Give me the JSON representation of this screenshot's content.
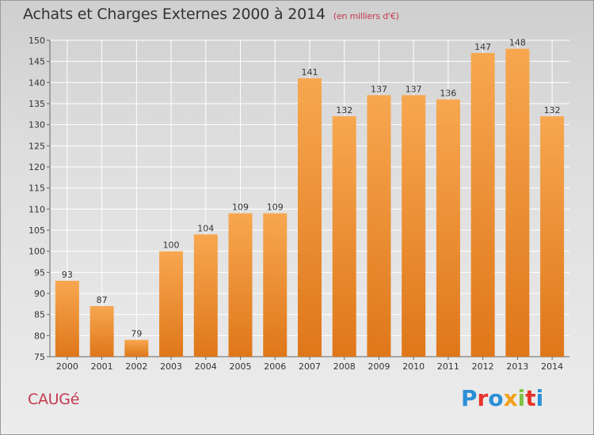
{
  "header": {
    "title": "Achats et Charges Externes 2000 à 2014",
    "unit": "(en milliers d'€)"
  },
  "footer": {
    "place": "CAUGé",
    "logo_text": "Proxiti",
    "logo_colors": [
      "#2a8fd6",
      "#e8332a",
      "#2a8fd6",
      "#f2a01a",
      "#7cc243",
      "#e8332a",
      "#2a8fd6"
    ]
  },
  "colors": {
    "bar_light": "#f6a24c",
    "bar_dark": "#e07a1e",
    "grid": "#ffffff",
    "axis": "#666666",
    "accent": "#c23a4e"
  },
  "chart_data": {
    "type": "bar",
    "title": "Achats et Charges Externes 2000 à 2014",
    "subtitle": "(en milliers d'€)",
    "xlabel": "",
    "ylabel": "",
    "categories": [
      "2000",
      "2001",
      "2002",
      "2003",
      "2004",
      "2005",
      "2006",
      "2007",
      "2008",
      "2009",
      "2010",
      "2011",
      "2012",
      "2013",
      "2014"
    ],
    "values": [
      93,
      87,
      79,
      100,
      104,
      109,
      109,
      141,
      132,
      137,
      137,
      136,
      147,
      148,
      132
    ],
    "ylim": [
      75,
      150
    ],
    "yticks": [
      75,
      80,
      85,
      90,
      95,
      100,
      105,
      110,
      115,
      120,
      125,
      130,
      135,
      140,
      145,
      150
    ],
    "grid": true,
    "legend": "none"
  }
}
